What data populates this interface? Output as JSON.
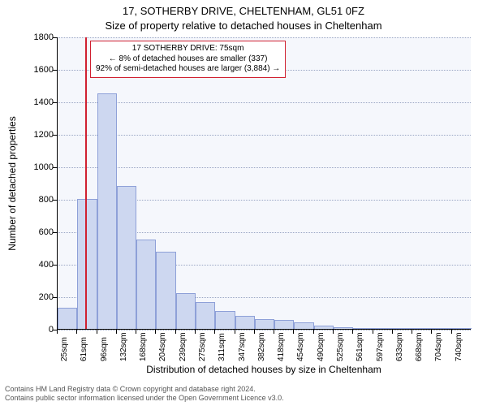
{
  "title_line1": "17, SOTHERBY DRIVE, CHELTENHAM, GL51 0FZ",
  "title_line2": "Size of property relative to detached houses in Cheltenham",
  "ylabel": "Number of detached properties",
  "xlabel": "Distribution of detached houses by size in Cheltenham",
  "footer_line1": "Contains HM Land Registry data © Crown copyright and database right 2024.",
  "footer_line2": "Contains public sector information licensed under the Open Government Licence v3.0.",
  "chart": {
    "type": "histogram",
    "plot_background": "#f5f7fc",
    "grid_color": "#9aa6c4",
    "axis_color": "#000000",
    "bar_fill": "#cdd7f0",
    "bar_border": "#8ea0d8",
    "marker_color": "#d02030",
    "annotation_border": "#d02030",
    "ylim": [
      0,
      1800
    ],
    "yticks": [
      0,
      200,
      400,
      600,
      800,
      1000,
      1200,
      1400,
      1600,
      1800
    ],
    "x_bin_width_sqm": 35.75,
    "x_start_sqm": 25,
    "categories": [
      "25sqm",
      "61sqm",
      "96sqm",
      "132sqm",
      "168sqm",
      "204sqm",
      "239sqm",
      "275sqm",
      "311sqm",
      "347sqm",
      "382sqm",
      "418sqm",
      "454sqm",
      "490sqm",
      "525sqm",
      "561sqm",
      "597sqm",
      "633sqm",
      "668sqm",
      "704sqm",
      "740sqm"
    ],
    "values": [
      130,
      800,
      1450,
      880,
      550,
      475,
      220,
      165,
      110,
      80,
      60,
      55,
      40,
      22,
      10,
      7,
      6,
      5,
      5,
      4,
      3
    ],
    "marker_sqm": 75,
    "annotation": {
      "line1": "17 SOTHERBY DRIVE: 75sqm",
      "line2": "← 8% of detached houses are smaller (337)",
      "line3": "92% of semi-detached houses are larger (3,884) →"
    },
    "tick_fontsize": 11,
    "title_fontsize": 13,
    "bar_width_ratio": 1.0
  }
}
